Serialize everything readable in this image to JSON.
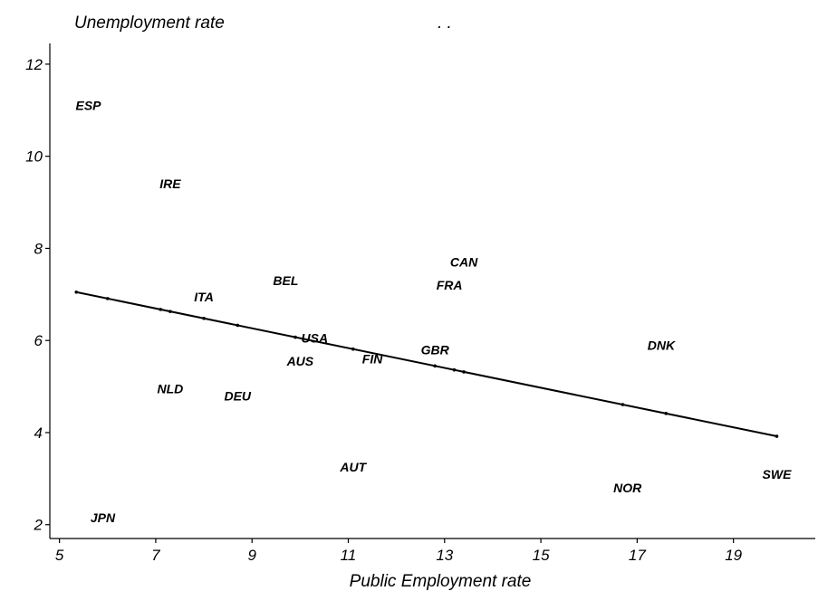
{
  "chart_data": {
    "type": "scatter",
    "title": "Unemployment rate",
    "note": ". .",
    "xlabel": "Public Employment rate",
    "ylabel": "Unemployment rate",
    "xlim": [
      4.8,
      20.7
    ],
    "ylim": [
      1.7,
      12.45
    ],
    "xticks": [
      5,
      7,
      9,
      11,
      13,
      15,
      17,
      19
    ],
    "yticks": [
      2,
      4,
      6,
      8,
      10,
      12
    ],
    "points": [
      {
        "label": "ESP",
        "x": 5.6,
        "y": 11.1
      },
      {
        "label": "IRE",
        "x": 7.3,
        "y": 9.4
      },
      {
        "label": "CAN",
        "x": 13.4,
        "y": 7.7
      },
      {
        "label": "BEL",
        "x": 9.7,
        "y": 7.3
      },
      {
        "label": "FRA",
        "x": 13.1,
        "y": 7.2
      },
      {
        "label": "ITA",
        "x": 8.0,
        "y": 6.95
      },
      {
        "label": "USA",
        "x": 10.3,
        "y": 6.05
      },
      {
        "label": "DNK",
        "x": 17.5,
        "y": 5.9
      },
      {
        "label": "GBR",
        "x": 12.8,
        "y": 5.8
      },
      {
        "label": "FIN",
        "x": 11.5,
        "y": 5.6
      },
      {
        "label": "AUS",
        "x": 10.0,
        "y": 5.55
      },
      {
        "label": "NLD",
        "x": 7.3,
        "y": 4.95
      },
      {
        "label": "DEU",
        "x": 8.7,
        "y": 4.8
      },
      {
        "label": "AUT",
        "x": 11.1,
        "y": 3.25
      },
      {
        "label": "SWE",
        "x": 19.9,
        "y": 3.1
      },
      {
        "label": "NOR",
        "x": 16.8,
        "y": 2.8
      },
      {
        "label": "JPN",
        "x": 5.9,
        "y": 2.15
      }
    ],
    "fit_line": {
      "x": [
        5.35,
        19.9
      ],
      "y": [
        7.05,
        3.92
      ]
    },
    "fit_points_x": [
      5.35,
      6.0,
      7.1,
      7.3,
      8.0,
      8.7,
      9.9,
      11.1,
      12.8,
      13.2,
      13.4,
      16.7,
      17.6,
      19.9
    ],
    "grid": false,
    "legend": "none"
  }
}
